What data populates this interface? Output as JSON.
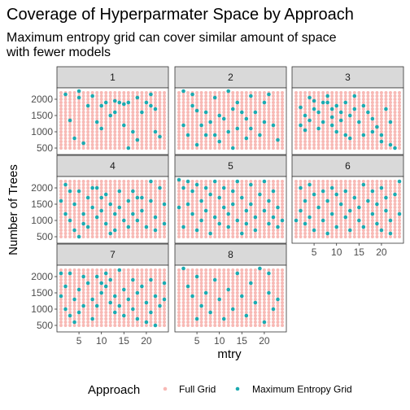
{
  "chart_data": {
    "type": "scatter",
    "title": "Coverage of Hyperparmater Space by Approach",
    "subtitle_lines": [
      "Maximum entropy grid can cover similar amount of space",
      "with fewer models"
    ],
    "xlabel": "mtry",
    "ylabel": "Number of Trees",
    "xlim": [
      1,
      24
    ],
    "ylim": [
      400,
      2250
    ],
    "x_ticks": [
      5,
      10,
      15,
      20
    ],
    "y_ticks": [
      500,
      1000,
      1500,
      2000
    ],
    "facets": [
      "1",
      "2",
      "3",
      "4",
      "5",
      "6",
      "7",
      "8"
    ],
    "legend": {
      "title": "Approach",
      "position": "bottom",
      "entries": [
        {
          "name": "Full Grid",
          "color": "#F8B9B5"
        },
        {
          "name": "Maximum Entropy Grid",
          "color": "#1BAAB0"
        }
      ]
    },
    "full_grid": {
      "x_start": 1,
      "x_end": 24,
      "x_step": 1,
      "y_start": 500,
      "y_end": 2250,
      "y_step": 100
    },
    "series": [
      {
        "name": "Maximum Entropy Grid",
        "facet": "1",
        "points": [
          [
            2,
            2150
          ],
          [
            3,
            1350
          ],
          [
            5,
            2250
          ],
          [
            5,
            2050
          ],
          [
            7,
            1800
          ],
          [
            8,
            2100
          ],
          [
            9,
            1300
          ],
          [
            10,
            1800
          ],
          [
            11,
            1900
          ],
          [
            12,
            1500
          ],
          [
            13,
            1950
          ],
          [
            13,
            1600
          ],
          [
            14,
            1900
          ],
          [
            15,
            1850
          ],
          [
            15,
            1200
          ],
          [
            16,
            1900
          ],
          [
            16,
            500
          ],
          [
            17,
            1000
          ],
          [
            18,
            2050
          ],
          [
            19,
            1600
          ],
          [
            20,
            1900
          ],
          [
            21,
            2150
          ],
          [
            21,
            1800
          ],
          [
            22,
            1700
          ],
          [
            22,
            1000
          ],
          [
            4,
            800
          ],
          [
            6,
            650
          ],
          [
            10,
            1100
          ],
          [
            18,
            750
          ],
          [
            23,
            850
          ]
        ]
      },
      {
        "name": "Maximum Entropy Grid",
        "facet": "2",
        "points": [
          [
            2,
            2250
          ],
          [
            2,
            1200
          ],
          [
            3,
            900
          ],
          [
            4,
            2150
          ],
          [
            4,
            1800
          ],
          [
            5,
            1650
          ],
          [
            5,
            600
          ],
          [
            6,
            1200
          ],
          [
            7,
            1600
          ],
          [
            7,
            900
          ],
          [
            8,
            1300
          ],
          [
            9,
            2050
          ],
          [
            9,
            900
          ],
          [
            10,
            1500
          ],
          [
            10,
            700
          ],
          [
            11,
            1400
          ],
          [
            12,
            2250
          ],
          [
            12,
            1000
          ],
          [
            13,
            1700
          ],
          [
            13,
            500
          ],
          [
            14,
            1900
          ],
          [
            14,
            1100
          ],
          [
            15,
            1600
          ],
          [
            16,
            1400
          ],
          [
            16,
            800
          ],
          [
            17,
            2100
          ],
          [
            17,
            1100
          ],
          [
            18,
            1600
          ],
          [
            19,
            900
          ],
          [
            20,
            1900
          ],
          [
            20,
            1300
          ],
          [
            21,
            2150
          ],
          [
            22,
            1200
          ],
          [
            23,
            750
          ]
        ]
      },
      {
        "name": "Maximum Entropy Grid",
        "facet": "3",
        "points": [
          [
            2,
            1750
          ],
          [
            3,
            1500
          ],
          [
            3,
            1050
          ],
          [
            4,
            2050
          ],
          [
            4,
            1350
          ],
          [
            5,
            1950
          ],
          [
            5,
            1700
          ],
          [
            6,
            1600
          ],
          [
            6,
            1100
          ],
          [
            7,
            1300
          ],
          [
            8,
            2100
          ],
          [
            8,
            1900
          ],
          [
            9,
            1700
          ],
          [
            9,
            1450
          ],
          [
            9,
            1200
          ],
          [
            10,
            1800
          ],
          [
            10,
            1000
          ],
          [
            11,
            1600
          ],
          [
            11,
            1350
          ],
          [
            12,
            1900
          ],
          [
            12,
            900
          ],
          [
            13,
            1500
          ],
          [
            13,
            800
          ],
          [
            14,
            2100
          ],
          [
            14,
            1700
          ],
          [
            15,
            1300
          ],
          [
            16,
            1800
          ],
          [
            16,
            900
          ],
          [
            17,
            1600
          ],
          [
            18,
            1400
          ],
          [
            18,
            1000
          ],
          [
            19,
            1150
          ],
          [
            20,
            900
          ],
          [
            20,
            700
          ],
          [
            21,
            1700
          ],
          [
            22,
            1300
          ],
          [
            22,
            600
          ],
          [
            23,
            500
          ],
          [
            2,
            1200
          ],
          [
            7,
            1900
          ]
        ]
      },
      {
        "name": "Maximum Entropy Grid",
        "facet": "4",
        "points": [
          [
            1,
            1600
          ],
          [
            2,
            2100
          ],
          [
            2,
            1200
          ],
          [
            3,
            1900
          ],
          [
            3,
            1000
          ],
          [
            4,
            1500
          ],
          [
            4,
            700
          ],
          [
            5,
            1900
          ],
          [
            5,
            500
          ],
          [
            6,
            1200
          ],
          [
            6,
            900
          ],
          [
            7,
            1700
          ],
          [
            7,
            800
          ],
          [
            8,
            1400
          ],
          [
            9,
            2000
          ],
          [
            9,
            1100
          ],
          [
            10,
            1700
          ],
          [
            10,
            1300
          ],
          [
            11,
            1800
          ],
          [
            11,
            900
          ],
          [
            12,
            1500
          ],
          [
            12,
            600
          ],
          [
            13,
            1200
          ],
          [
            13,
            700
          ],
          [
            14,
            1900
          ],
          [
            14,
            1400
          ],
          [
            15,
            1000
          ],
          [
            16,
            1600
          ],
          [
            16,
            800
          ],
          [
            17,
            1200
          ],
          [
            17,
            1900
          ],
          [
            18,
            1000
          ],
          [
            19,
            1700
          ],
          [
            19,
            1300
          ],
          [
            20,
            800
          ],
          [
            21,
            2200
          ],
          [
            21,
            1600
          ],
          [
            22,
            1100
          ],
          [
            22,
            700
          ],
          [
            23,
            2000
          ],
          [
            24,
            1500
          ],
          [
            24,
            900
          ],
          [
            8,
            2000
          ],
          [
            18,
            1700
          ]
        ]
      },
      {
        "name": "Maximum Entropy Grid",
        "facet": "5",
        "points": [
          [
            1,
            2250
          ],
          [
            1,
            1400
          ],
          [
            2,
            2000
          ],
          [
            2,
            800
          ],
          [
            3,
            2200
          ],
          [
            3,
            1500
          ],
          [
            4,
            1900
          ],
          [
            4,
            1200
          ],
          [
            5,
            2100
          ],
          [
            5,
            700
          ],
          [
            6,
            1600
          ],
          [
            6,
            1000
          ],
          [
            7,
            2000
          ],
          [
            7,
            1300
          ],
          [
            8,
            1800
          ],
          [
            8,
            600
          ],
          [
            9,
            2200
          ],
          [
            9,
            1100
          ],
          [
            10,
            1700
          ],
          [
            10,
            900
          ],
          [
            11,
            2000
          ],
          [
            11,
            1400
          ],
          [
            12,
            1200
          ],
          [
            12,
            800
          ],
          [
            13,
            1900
          ],
          [
            13,
            1500
          ],
          [
            14,
            2200
          ],
          [
            14,
            1000
          ],
          [
            15,
            1700
          ],
          [
            15,
            600
          ],
          [
            16,
            1300
          ],
          [
            16,
            900
          ],
          [
            17,
            2100
          ],
          [
            17,
            1500
          ],
          [
            18,
            1100
          ],
          [
            18,
            700
          ],
          [
            19,
            1800
          ],
          [
            20,
            1300
          ],
          [
            20,
            2200
          ],
          [
            21,
            900
          ],
          [
            21,
            1600
          ],
          [
            22,
            1900
          ],
          [
            22,
            1100
          ],
          [
            23,
            800
          ],
          [
            23,
            1400
          ],
          [
            24,
            1000
          ]
        ]
      },
      {
        "name": "Maximum Entropy Grid",
        "facet": "6",
        "points": [
          [
            1,
            1000
          ],
          [
            2,
            2000
          ],
          [
            2,
            1300
          ],
          [
            3,
            1600
          ],
          [
            3,
            900
          ],
          [
            4,
            2100
          ],
          [
            4,
            1100
          ],
          [
            5,
            1800
          ],
          [
            5,
            700
          ],
          [
            6,
            1400
          ],
          [
            7,
            1900
          ],
          [
            7,
            1000
          ],
          [
            8,
            1600
          ],
          [
            8,
            600
          ],
          [
            9,
            2000
          ],
          [
            9,
            1200
          ],
          [
            10,
            1800
          ],
          [
            10,
            800
          ],
          [
            11,
            1500
          ],
          [
            12,
            1900
          ],
          [
            12,
            1100
          ],
          [
            13,
            1300
          ],
          [
            13,
            700
          ],
          [
            14,
            1700
          ],
          [
            15,
            1000
          ],
          [
            15,
            1400
          ],
          [
            16,
            2100
          ],
          [
            16,
            800
          ],
          [
            17,
            1600
          ],
          [
            18,
            1200
          ],
          [
            18,
            1900
          ],
          [
            19,
            900
          ],
          [
            19,
            1500
          ],
          [
            20,
            2000
          ],
          [
            20,
            700
          ],
          [
            21,
            1300
          ],
          [
            21,
            1700
          ],
          [
            22,
            1000
          ],
          [
            22,
            600
          ],
          [
            23,
            1800
          ],
          [
            24,
            2200
          ],
          [
            24,
            1200
          ]
        ]
      },
      {
        "name": "Maximum Entropy Grid",
        "facet": "7",
        "points": [
          [
            1,
            2100
          ],
          [
            1,
            1400
          ],
          [
            2,
            1700
          ],
          [
            2,
            1000
          ],
          [
            3,
            2100
          ],
          [
            3,
            800
          ],
          [
            4,
            1300
          ],
          [
            4,
            600
          ],
          [
            5,
            1600
          ],
          [
            5,
            900
          ],
          [
            6,
            2000
          ],
          [
            6,
            1100
          ],
          [
            7,
            1800
          ],
          [
            8,
            1300
          ],
          [
            8,
            700
          ],
          [
            9,
            2000
          ],
          [
            9,
            1100
          ],
          [
            10,
            1800
          ],
          [
            10,
            1500
          ],
          [
            11,
            1700
          ],
          [
            11,
            2100
          ],
          [
            12,
            1900
          ],
          [
            12,
            1200
          ],
          [
            13,
            900
          ],
          [
            13,
            1400
          ],
          [
            14,
            2200
          ],
          [
            14,
            1100
          ],
          [
            15,
            1600
          ],
          [
            15,
            800
          ],
          [
            16,
            1300
          ],
          [
            17,
            1900
          ],
          [
            17,
            1000
          ],
          [
            18,
            1500
          ],
          [
            18,
            700
          ],
          [
            19,
            1700
          ],
          [
            20,
            1200
          ],
          [
            20,
            600
          ],
          [
            21,
            1900
          ],
          [
            21,
            900
          ],
          [
            22,
            1400
          ],
          [
            22,
            500
          ],
          [
            23,
            1100
          ],
          [
            24,
            1800
          ],
          [
            24,
            1300
          ]
        ]
      },
      {
        "name": "Maximum Entropy Grid",
        "facet": "8",
        "points": [
          [
            2,
            2250
          ],
          [
            3,
            1700
          ],
          [
            4,
            1400
          ],
          [
            5,
            2000
          ],
          [
            5,
            700
          ],
          [
            6,
            1100
          ],
          [
            7,
            1500
          ],
          [
            8,
            900
          ],
          [
            9,
            1900
          ],
          [
            10,
            1300
          ],
          [
            11,
            700
          ],
          [
            12,
            1600
          ],
          [
            13,
            1000
          ],
          [
            14,
            2100
          ],
          [
            15,
            1400
          ],
          [
            16,
            800
          ],
          [
            17,
            1800
          ],
          [
            18,
            1200
          ],
          [
            19,
            2250
          ],
          [
            20,
            600
          ],
          [
            21,
            2100
          ],
          [
            21,
            1500
          ],
          [
            22,
            1000
          ],
          [
            23,
            1300
          ]
        ]
      }
    ]
  }
}
